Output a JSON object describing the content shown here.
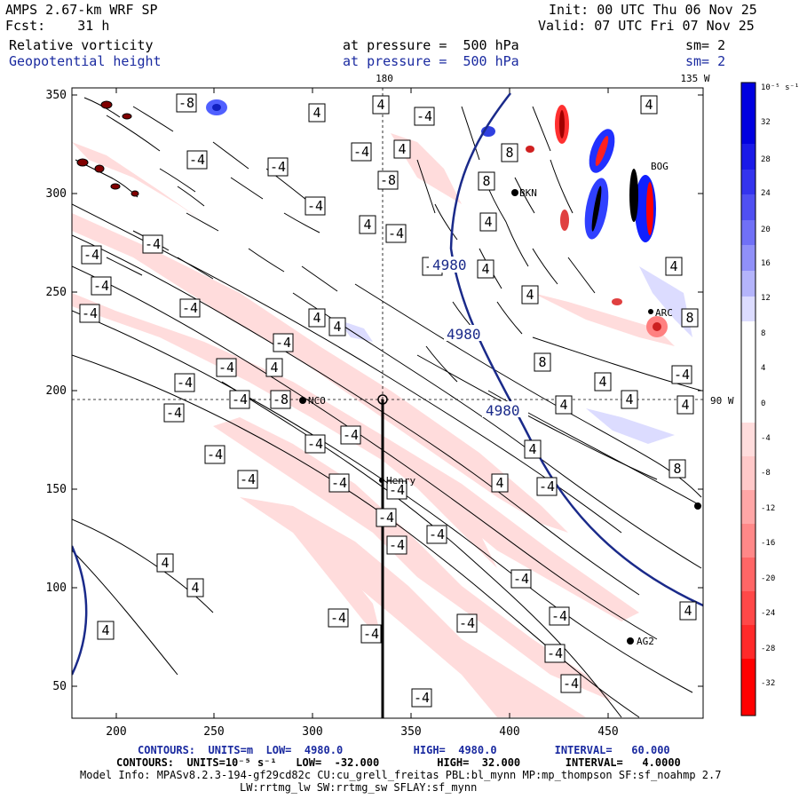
{
  "header": {
    "model_line": "AMPS 2.67-km WRF SP",
    "fcst_label": "Fcst:",
    "fcst_value": "31 h",
    "init_label": "Init:",
    "init_value": "00 UTC Thu 06 Nov 25",
    "valid_label": "Valid:",
    "valid_value": "07 UTC Fri 07 Nov 25",
    "field1_name": "Relative vorticity",
    "field1_level": "at pressure =  500 hPa",
    "field1_sm": "sm= 2",
    "field2_name": "Geopotential height",
    "field2_level": "at pressure =  500 hPa",
    "field2_sm": "sm= 2"
  },
  "map": {
    "lon_label_top_1": "180",
    "lon_label_top_2": "135 W",
    "lon_label_right": "90 W",
    "x_ticks": [
      "200",
      "250",
      "300",
      "350",
      "400",
      "450"
    ],
    "y_ticks": [
      "350",
      "300",
      "250",
      "200",
      "150",
      "100",
      "50"
    ],
    "stations": [
      {
        "name": "NCO"
      },
      {
        "name": "Henry"
      },
      {
        "name": "AG2"
      },
      {
        "name": "BKN"
      },
      {
        "name": "BOG"
      },
      {
        "name": "ARC"
      }
    ],
    "height_contour_label": "4980",
    "vort_labels": [
      "-4",
      "4",
      "-8",
      "8"
    ]
  },
  "colorbar": {
    "unit_label": "10⁻⁵ s⁻¹",
    "ticks": [
      "32",
      "28",
      "24",
      "20",
      "16",
      "12",
      "8",
      "4",
      "0",
      "-4",
      "-8",
      "-12",
      "-16",
      "-20",
      "-24",
      "-28",
      "-32"
    ],
    "colors": {
      "blue_strong": "#0000e0",
      "blue_light": "#dcdcff",
      "red_light": "#ffdcdc",
      "red_strong": "#ff0000"
    }
  },
  "footer": {
    "contours1": "CONTOURS:  UNITS=m  LOW=  4980.0           HIGH=  4980.0         INTERVAL=   60.000",
    "contours2": "CONTOURS:  UNITS=10⁻⁵ s⁻¹   LOW=  -32.000         HIGH=  32.000       INTERVAL=   4.0000",
    "model_info": "Model Info: MPASv8.2.3-194-gf29cd82c CU:cu_grell_freitas PBL:bl_mynn MP:mp_thompson SF:sf_noahmp 2.7",
    "model_info2": "LW:rrtmg_lw SW:rrtmg_sw SFLAY:sf_mynn"
  }
}
